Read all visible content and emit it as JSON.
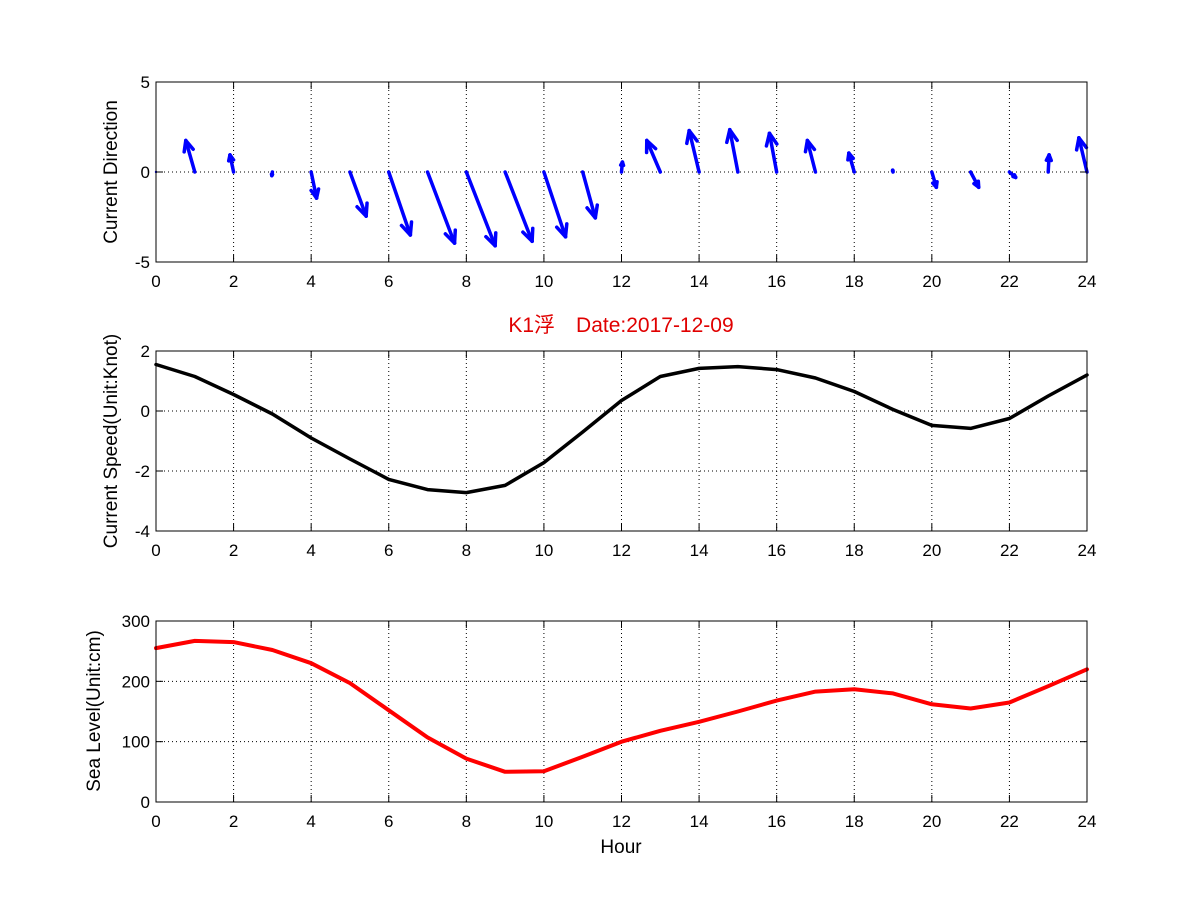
{
  "chart_data": [
    {
      "type": "quiver",
      "title": "",
      "xlabel": "",
      "ylabel": "Current Direction",
      "xlim": [
        0,
        24
      ],
      "ylim": [
        -5,
        5
      ],
      "xticks": [
        0,
        2,
        4,
        6,
        8,
        10,
        12,
        14,
        16,
        18,
        20,
        22,
        24
      ],
      "yticks": [
        -5,
        0,
        5
      ],
      "grid": true,
      "color": "#0000ff",
      "series": [
        {
          "x": [
            0,
            1,
            2,
            3,
            4,
            5,
            6,
            7,
            8,
            9,
            10,
            11,
            12,
            13,
            14,
            15,
            16,
            17,
            18,
            19,
            20,
            21,
            22,
            23,
            24
          ],
          "u": [
            0,
            -0.5,
            -0.2,
            -0.03,
            0.3,
            0.9,
            1.2,
            1.5,
            1.6,
            1.5,
            1.2,
            0.7,
            0.05,
            -0.75,
            -0.55,
            -0.45,
            -0.4,
            -0.45,
            -0.3,
            -0.02,
            0.25,
            0.45,
            0.35,
            0.05,
            -0.45
          ],
          "v": [
            0,
            1.75,
            0.95,
            -0.2,
            -1.45,
            -2.45,
            -3.5,
            -3.95,
            -4.1,
            -3.85,
            -3.6,
            -2.55,
            0.55,
            1.75,
            2.3,
            2.35,
            2.15,
            1.75,
            1.05,
            0.1,
            -0.85,
            -0.85,
            -0.3,
            0.95,
            1.9
          ]
        }
      ]
    },
    {
      "type": "line",
      "title": "K1浮　Date:2017-12-09",
      "xlabel": "",
      "ylabel": "Current Speed(Unit:Knot)",
      "xlim": [
        0,
        24
      ],
      "ylim": [
        -4,
        2
      ],
      "xticks": [
        0,
        2,
        4,
        6,
        8,
        10,
        12,
        14,
        16,
        18,
        20,
        22,
        24
      ],
      "yticks": [
        -4,
        -2,
        0,
        2
      ],
      "grid": true,
      "color": "#000000",
      "title_color": "#e00000",
      "series": [
        {
          "x": [
            0,
            1,
            2,
            3,
            4,
            5,
            6,
            7,
            8,
            9,
            10,
            11,
            12,
            13,
            14,
            15,
            16,
            17,
            18,
            19,
            20,
            21,
            22,
            23,
            24
          ],
          "y": [
            1.55,
            1.15,
            0.55,
            -0.1,
            -0.9,
            -1.6,
            -2.28,
            -2.62,
            -2.72,
            -2.48,
            -1.72,
            -0.7,
            0.35,
            1.15,
            1.42,
            1.48,
            1.38,
            1.1,
            0.65,
            0.05,
            -0.48,
            -0.58,
            -0.25,
            0.5,
            1.2
          ]
        }
      ]
    },
    {
      "type": "line",
      "title": "",
      "xlabel": "Hour",
      "ylabel": "Sea Level(Unit:cm)",
      "xlim": [
        0,
        24
      ],
      "ylim": [
        0,
        300
      ],
      "xticks": [
        0,
        2,
        4,
        6,
        8,
        10,
        12,
        14,
        16,
        18,
        20,
        22,
        24
      ],
      "yticks": [
        0,
        100,
        200,
        300
      ],
      "grid": true,
      "color": "#ff0000",
      "series": [
        {
          "x": [
            0,
            1,
            2,
            3,
            4,
            5,
            6,
            7,
            8,
            9,
            10,
            11,
            12,
            13,
            14,
            15,
            16,
            17,
            18,
            19,
            20,
            21,
            22,
            23,
            24
          ],
          "y": [
            255,
            267,
            265,
            252,
            230,
            197,
            152,
            107,
            72,
            50,
            51,
            75,
            100,
            118,
            133,
            150,
            168,
            183,
            187,
            180,
            162,
            155,
            165,
            192,
            220
          ]
        }
      ]
    }
  ]
}
